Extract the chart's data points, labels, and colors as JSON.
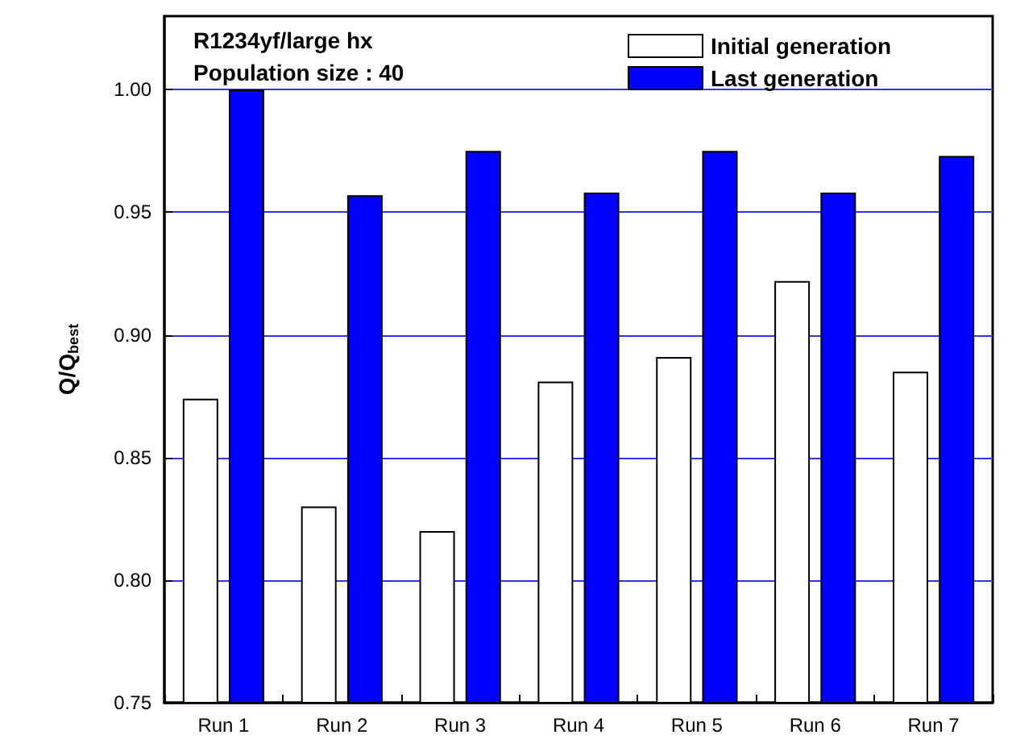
{
  "chart_data": {
    "type": "bar",
    "ylabel": "Q/Q$_{best}$",
    "annotations": [
      "R1234yf/large hx",
      "Population size : 40"
    ],
    "categories": [
      "Run 1",
      "Run 2",
      "Run 3",
      "Run 4",
      "Run 5",
      "Run 6",
      "Run 7"
    ],
    "series": [
      {
        "name": "Initial generation",
        "color": "#ffffff",
        "values": [
          0.874,
          0.83,
          0.82,
          0.881,
          0.891,
          0.922,
          0.885
        ]
      },
      {
        "name": "Last generation",
        "color": "#0000ff",
        "values": [
          1.0,
          0.957,
          0.975,
          0.958,
          0.975,
          0.958,
          0.973
        ]
      }
    ],
    "ylim": [
      0.75,
      1.03
    ],
    "yticks": [
      {
        "value": 0.75,
        "label": "0.75"
      },
      {
        "value": 0.8,
        "label": "0.80"
      },
      {
        "value": 0.85,
        "label": "0.85"
      },
      {
        "value": 0.9,
        "label": "0.90"
      },
      {
        "value": 0.95,
        "label": "0.95"
      },
      {
        "value": 1,
        "label": "1.00"
      }
    ],
    "grid": "y",
    "legend": "top right"
  }
}
